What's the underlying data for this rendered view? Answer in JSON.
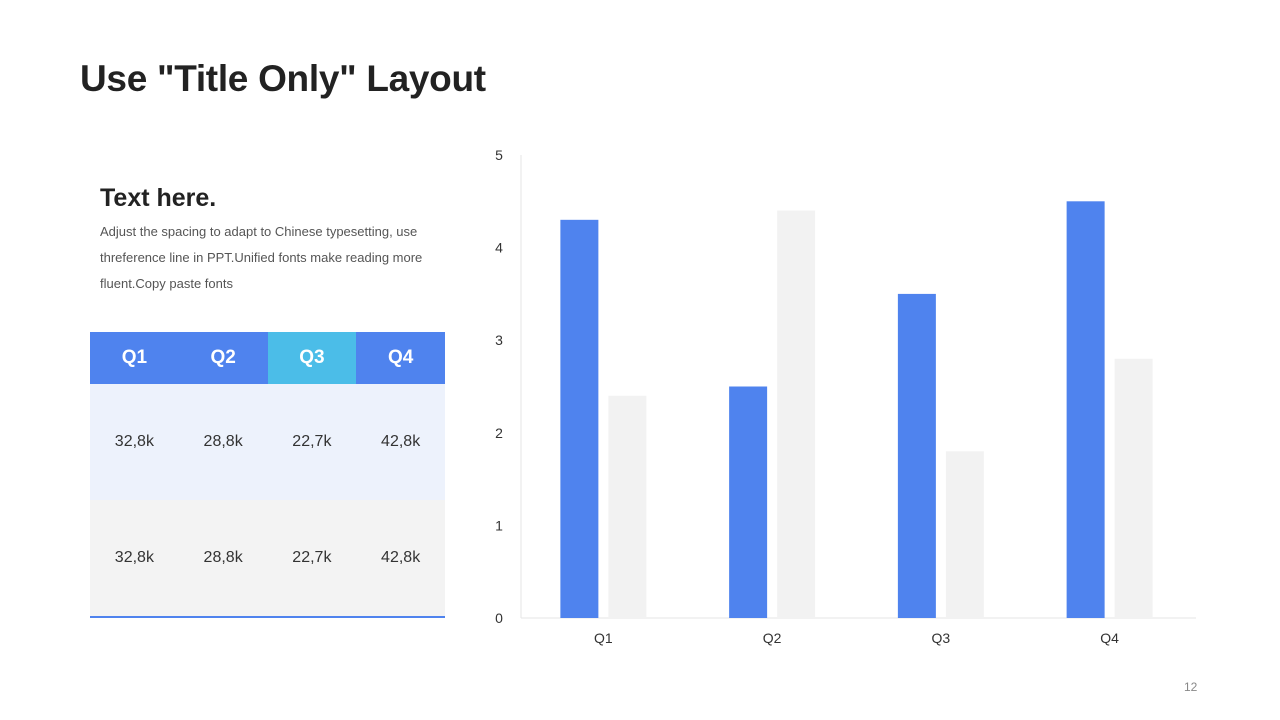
{
  "slide": {
    "title": "Use \"Title Only\" Layout",
    "page_number": "12"
  },
  "text_block": {
    "heading": "Text here.",
    "body": "Adjust the spacing to adapt to Chinese typesetting, use threference line in PPT.Unified fonts make reading more fluent.Copy paste fonts"
  },
  "table": {
    "headers": [
      "Q1",
      "Q2",
      "Q3",
      "Q4"
    ],
    "active_header": "Q3",
    "rows": [
      [
        "32,8k",
        "28,8k",
        "22,7k",
        "42,8k"
      ],
      [
        "32,8k",
        "28,8k",
        "22,7k",
        "42,8k"
      ]
    ]
  },
  "colors": {
    "accent_blue": "#4f83ee",
    "highlight_cyan": "#4bbde8",
    "secondary_gray": "#f2f2f2"
  },
  "chart_data": {
    "type": "bar",
    "categories": [
      "Q1",
      "Q2",
      "Q3",
      "Q4"
    ],
    "series": [
      {
        "values": [
          4.3,
          2.5,
          3.5,
          4.5
        ],
        "color": "#4f83ee"
      },
      {
        "values": [
          2.4,
          4.4,
          1.8,
          2.8
        ],
        "color": "#f2f2f2"
      }
    ],
    "ylim": [
      0,
      5
    ],
    "yticks": [
      0,
      1,
      2,
      3,
      4,
      5
    ],
    "grid": false,
    "legend": "none"
  }
}
